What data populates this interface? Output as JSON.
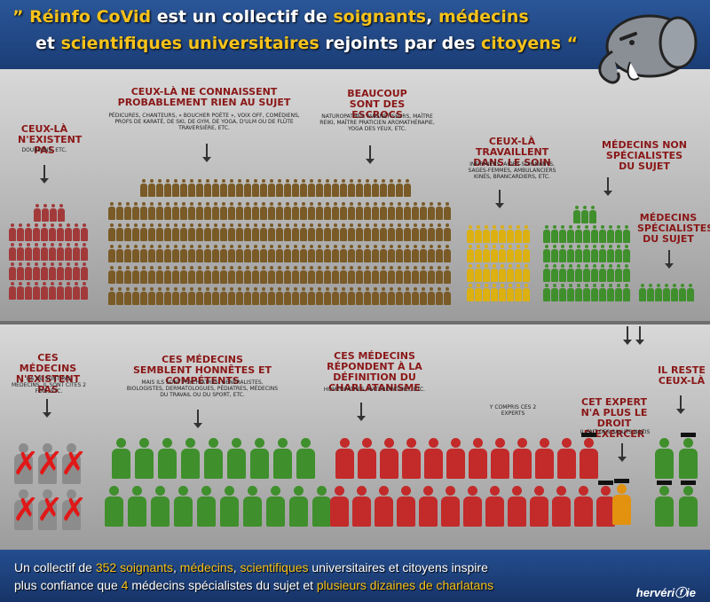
{
  "header": {
    "open_quote": "” ",
    "name": "Réinfo CoVid",
    "mid1": " est un collectif de ",
    "w1": "soignants",
    "comma1": ", ",
    "w2": "médecins",
    "et": "et ",
    "w3": "scientifiques universitaires",
    "mid2": " rejoints par des ",
    "w4": "citoyens",
    "close_quote": " “"
  },
  "groups": {
    "g1": {
      "title": "CEUX-LÀ N'EXISTENT PAS",
      "sub": "DOUBLONS, ETC."
    },
    "g2": {
      "title": "CEUX-LÀ NE CONNAISSENT PROBABLEMENT RIEN AU SUJET",
      "sub": "PÉDICURES, CHANTEURS, « BOUCHER POÈTE », VOIX OFF, COMÉDIENS, PROFS DE KARATÉ, DE SKI, DE GYM, DE YOGA, D'ULM OU DE FLÛTE TRAVERSIÈRE, ETC."
    },
    "g3": {
      "title": "BEAUCOUP SONT DES ESCROCS",
      "sub": "NATUROPATHES, MAGNÉTISEURS, MAÎTRE REIKI, MAÎTRE PRATICIEN AROMATHÉRAPIE, YOGA DES YEUX, ETC."
    },
    "g4": {
      "title": "CEUX-LÀ TRAVAILLENT DANS LE SOIN",
      "sub": "INFIRMIERS, AIDES-SOIGNANTS, SAGES-FEMMES, AMBULANCIERS KINÉS, BRANCARDIERS, ETC."
    },
    "g5": {
      "title": "MÉDECINS NON SPÉCIALISTES DU SUJET"
    },
    "g6": {
      "title": "MÉDECINS SPÉCIALISTES DU SUJET"
    },
    "g7": {
      "title": "CES MÉDECINS N'EXISTENT PAS",
      "sub": "ILS NE SONT PAS MÉDECINS, IL SONT CITÉS 2 FOIS, ETC."
    },
    "g8": {
      "title": "CES MÉDECINS SEMBLENT HONNÊTES ET COMPÉTENTS",
      "sub": "MAIS ILS SONT PSYCHIATRES, GÉNÉRALISTES, BIOLOGISTES, DERMATOLOGUES, PÉDIATRES, MÉDECINS DU TRAVAIL OU DU SPORT, ETC."
    },
    "g9": {
      "title": "CES MÉDECINS RÉPONDENT À LA DÉFINITION DU CHARLATANISME",
      "sub": "HOMÉOPATHES, NATUROPATHES, ETC."
    },
    "g9b": {
      "sub": "Y COMPRIS CES 2 EXPERTS"
    },
    "g10": {
      "title": "CET EXPERT N'A PLUS LE DROIT D'EXERCER",
      "sub": "IL FAIT DES SALUTS NAZIS"
    },
    "g11": {
      "title": "IL RESTE CEUX-LÀ"
    }
  },
  "footer": {
    "a": "Un collectif de ",
    "n352": "352 soignants",
    "c1": ", ",
    "med": "médecins",
    "c2": ", ",
    "sci": "scientifiques",
    "b": " universitaires et citoyens inspire",
    "c": "plus confiance que ",
    "n4": "4",
    "d": " médecins spécialistes du sujet et ",
    "diz": "plusieurs dizaines de charlatans",
    "brand": "hervériⓕie"
  },
  "colors": {
    "header_bg": "#1f3f78",
    "highlight": "#f7c21a",
    "title_red": "#8a1717",
    "brown": "#7a5a26",
    "yellow": "#dcb010",
    "green": "#3f8f2c",
    "red": "#c32a2a",
    "grey": "#8c8c8c",
    "orange": "#e2920f"
  },
  "icons": [
    "elephant-mascot-icon",
    "arrow-down-icon",
    "person-icon",
    "doctor-icon",
    "graduation-cap-icon",
    "cross-mark-icon"
  ]
}
